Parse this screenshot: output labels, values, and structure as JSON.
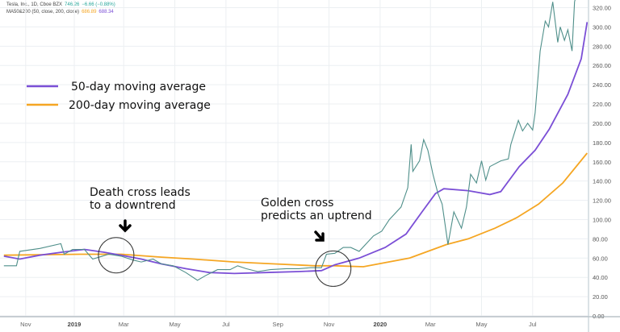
{
  "header": {
    "symbol_line": "Tesla, Inc., 1D, Cboe BZX",
    "last_price": "746.26",
    "change": "−6.66 (−0.88%)",
    "indicator_line": "MA50&200 (50, close, 200, close)",
    "ma50_value": "686.89",
    "ma200_value": "688.34"
  },
  "colors": {
    "price": "#4f8f8a",
    "ma50": "#7b4fd6",
    "ma200": "#f5a623",
    "grid": "#eceff2",
    "header_price": "#26a69a",
    "header_ma200": "#f5a623",
    "header_ma50": "#7b4fd6"
  },
  "chart_data": {
    "type": "line",
    "title": "",
    "xlabel": "",
    "ylabel": "",
    "ylim": [
      0,
      320
    ],
    "xlim": [
      "2018-10-06",
      "2020-09-04"
    ],
    "grid": true,
    "legend_position": "top-left",
    "y_ticks": [
      "0.00",
      "20.00",
      "40.00",
      "60.00",
      "80.00",
      "100.00",
      "120.00",
      "140.00",
      "160.00",
      "180.00",
      "200.00",
      "220.00",
      "240.00",
      "260.00",
      "280.00",
      "300.00",
      "320.00"
    ],
    "x_ticks": [
      {
        "label": "Nov",
        "date": "2018-11-04",
        "bold": false
      },
      {
        "label": "2019",
        "date": "2019-01-01",
        "bold": true
      },
      {
        "label": "Mar",
        "date": "2019-03-01",
        "bold": false
      },
      {
        "label": "May",
        "date": "2019-05-01",
        "bold": false
      },
      {
        "label": "Jul",
        "date": "2019-07-01",
        "bold": false
      },
      {
        "label": "Sep",
        "date": "2019-09-01",
        "bold": false
      },
      {
        "label": "Nov",
        "date": "2019-11-01",
        "bold": false
      },
      {
        "label": "2020",
        "date": "2020-01-01",
        "bold": true
      },
      {
        "label": "Mar",
        "date": "2020-03-01",
        "bold": false
      },
      {
        "label": "May",
        "date": "2020-05-01",
        "bold": false
      },
      {
        "label": "Jul",
        "date": "2020-07-01",
        "bold": false
      }
    ],
    "series": [
      {
        "key": "price",
        "name": "",
        "color": "#4f8f8a",
        "points": [
          [
            "2018-10-09",
            52
          ],
          [
            "2018-10-24",
            52
          ],
          [
            "2018-10-28",
            67
          ],
          [
            "2018-11-21",
            70
          ],
          [
            "2018-12-16",
            75
          ],
          [
            "2018-12-20",
            64
          ],
          [
            "2018-12-30",
            69
          ],
          [
            "2019-01-13",
            69
          ],
          [
            "2019-01-23",
            59
          ],
          [
            "2019-02-11",
            64
          ],
          [
            "2019-02-26",
            62
          ],
          [
            "2019-03-12",
            58
          ],
          [
            "2019-03-22",
            56
          ],
          [
            "2019-04-05",
            59
          ],
          [
            "2019-04-15",
            54
          ],
          [
            "2019-04-29",
            52
          ],
          [
            "2019-05-14",
            45
          ],
          [
            "2019-05-28",
            37
          ],
          [
            "2019-06-07",
            42
          ],
          [
            "2019-06-21",
            48
          ],
          [
            "2019-07-06",
            48
          ],
          [
            "2019-07-15",
            52
          ],
          [
            "2019-07-25",
            49
          ],
          [
            "2019-08-08",
            46
          ],
          [
            "2019-08-23",
            48
          ],
          [
            "2019-09-11",
            49
          ],
          [
            "2019-09-26",
            49
          ],
          [
            "2019-10-10",
            50
          ],
          [
            "2019-10-23",
            50
          ],
          [
            "2019-10-29",
            64
          ],
          [
            "2019-11-08",
            65
          ],
          [
            "2019-11-18",
            71
          ],
          [
            "2019-11-27",
            71
          ],
          [
            "2019-12-07",
            67
          ],
          [
            "2019-12-24",
            83
          ],
          [
            "2020-01-03",
            88
          ],
          [
            "2020-01-12",
            100
          ],
          [
            "2020-01-26",
            113
          ],
          [
            "2020-02-03",
            133
          ],
          [
            "2020-02-07",
            178
          ],
          [
            "2020-02-09",
            150
          ],
          [
            "2020-02-17",
            161
          ],
          [
            "2020-02-22",
            183
          ],
          [
            "2020-02-27",
            172
          ],
          [
            "2020-03-04",
            147
          ],
          [
            "2020-03-10",
            127
          ],
          [
            "2020-03-15",
            116
          ],
          [
            "2020-03-22",
            74
          ],
          [
            "2020-03-29",
            108
          ],
          [
            "2020-04-07",
            91
          ],
          [
            "2020-04-13",
            113
          ],
          [
            "2020-04-18",
            147
          ],
          [
            "2020-04-25",
            138
          ],
          [
            "2020-05-01",
            161
          ],
          [
            "2020-05-06",
            141
          ],
          [
            "2020-05-11",
            155
          ],
          [
            "2020-05-24",
            161
          ],
          [
            "2020-06-02",
            163
          ],
          [
            "2020-06-05",
            178
          ],
          [
            "2020-06-14",
            203
          ],
          [
            "2020-06-19",
            192
          ],
          [
            "2020-06-25",
            200
          ],
          [
            "2020-07-01",
            193
          ],
          [
            "2020-07-04",
            211
          ],
          [
            "2020-07-10",
            275
          ],
          [
            "2020-07-16",
            306
          ],
          [
            "2020-07-20",
            300
          ],
          [
            "2020-07-25",
            326
          ],
          [
            "2020-07-31",
            284
          ],
          [
            "2020-08-03",
            300
          ],
          [
            "2020-08-08",
            286
          ],
          [
            "2020-08-12",
            297
          ],
          [
            "2020-08-17",
            275
          ],
          [
            "2020-08-20",
            326
          ],
          [
            "2020-08-24",
            340
          ]
        ]
      },
      {
        "key": "ma50",
        "name": "50-day moving average",
        "color": "#7b4fd6",
        "points": [
          [
            "2018-10-09",
            62
          ],
          [
            "2018-10-28",
            59
          ],
          [
            "2018-11-21",
            63
          ],
          [
            "2018-12-16",
            66
          ],
          [
            "2019-01-13",
            69
          ],
          [
            "2019-02-06",
            66
          ],
          [
            "2019-02-26",
            63
          ],
          [
            "2019-03-22",
            59
          ],
          [
            "2019-04-15",
            54
          ],
          [
            "2019-05-14",
            49
          ],
          [
            "2019-06-11",
            45
          ],
          [
            "2019-07-11",
            44
          ],
          [
            "2019-08-18",
            45
          ],
          [
            "2019-09-26",
            46
          ],
          [
            "2019-10-23",
            47
          ],
          [
            "2019-11-08",
            53
          ],
          [
            "2019-12-07",
            60
          ],
          [
            "2020-01-07",
            71
          ],
          [
            "2020-02-01",
            85
          ],
          [
            "2020-02-20",
            108
          ],
          [
            "2020-03-07",
            127
          ],
          [
            "2020-03-17",
            132
          ],
          [
            "2020-04-15",
            130
          ],
          [
            "2020-05-11",
            126
          ],
          [
            "2020-05-24",
            129
          ],
          [
            "2020-06-15",
            155
          ],
          [
            "2020-07-04",
            172
          ],
          [
            "2020-07-21",
            194
          ],
          [
            "2020-08-12",
            230
          ],
          [
            "2020-08-28",
            267
          ],
          [
            "2020-09-04",
            305
          ]
        ]
      },
      {
        "key": "ma200",
        "name": "200-day moving average",
        "color": "#f5a623",
        "points": [
          [
            "2018-10-09",
            63
          ],
          [
            "2019-01-08",
            64
          ],
          [
            "2019-02-26",
            64
          ],
          [
            "2019-04-15",
            61
          ],
          [
            "2019-05-23",
            59
          ],
          [
            "2019-07-11",
            56
          ],
          [
            "2019-08-28",
            54
          ],
          [
            "2019-10-15",
            52
          ],
          [
            "2019-11-08",
            52
          ],
          [
            "2019-12-12",
            51
          ],
          [
            "2020-02-05",
            60
          ],
          [
            "2020-03-20",
            74
          ],
          [
            "2020-04-15",
            80
          ],
          [
            "2020-05-17",
            91
          ],
          [
            "2020-06-12",
            102
          ],
          [
            "2020-07-08",
            116
          ],
          [
            "2020-08-06",
            138
          ],
          [
            "2020-09-04",
            169
          ]
        ]
      }
    ],
    "annotations": [
      {
        "key": "death",
        "lines": [
          "Death cross leads",
          "to a downtrend"
        ],
        "marker_date": "2019-02-20",
        "marker_value": 63
      },
      {
        "key": "golden",
        "lines": [
          "Golden cross",
          "predicts an uptrend"
        ],
        "marker_date": "2019-11-06",
        "marker_value": 49
      }
    ]
  }
}
